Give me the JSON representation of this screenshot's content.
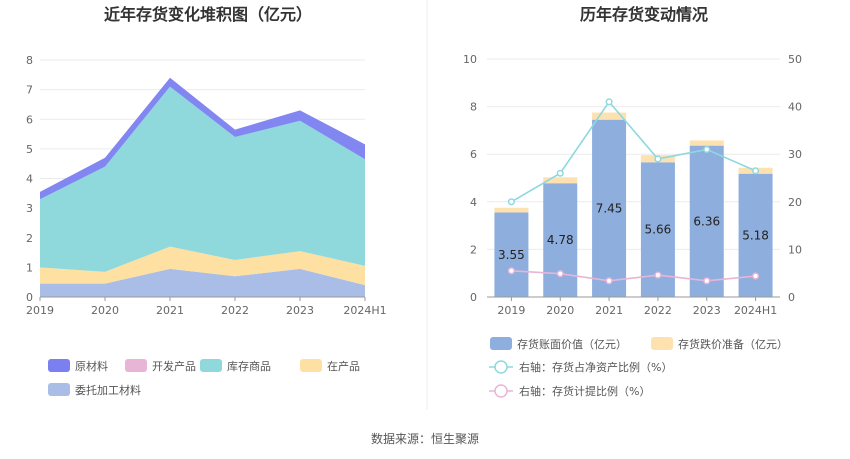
{
  "source": {
    "label": "数据来源：恒生聚源"
  },
  "colors": {
    "raw_material": "#7b7ff0",
    "dev_product": "#e8b5d6",
    "inventory_goods": "#8fd9dc",
    "wip": "#fde0a2",
    "consigned": "#a9bde6",
    "bar_book": "#8eaede",
    "bar_provision": "#fde2b0",
    "line_ratio": "#8ed8e0",
    "line_provision": "#e8b5d6"
  },
  "chart_data": [
    {
      "type": "area",
      "title": "近年存货变化堆积图（亿元）",
      "categories": [
        "2019",
        "2020",
        "2021",
        "2022",
        "2023",
        "2024H1"
      ],
      "ylim": [
        0,
        8
      ],
      "yticks": [
        0,
        1,
        2,
        3,
        4,
        5,
        6,
        7,
        8
      ],
      "stacked": true,
      "grid": true,
      "legend_position": "bottom",
      "series": [
        {
          "name": "委托加工材料",
          "key": "consigned",
          "values": [
            0.45,
            0.45,
            0.95,
            0.7,
            0.95,
            0.4
          ]
        },
        {
          "name": "在产品",
          "key": "wip",
          "values": [
            0.55,
            0.4,
            0.75,
            0.55,
            0.6,
            0.65
          ]
        },
        {
          "name": "库存商品",
          "key": "inventory_goods",
          "values": [
            2.3,
            3.55,
            5.4,
            4.15,
            4.4,
            3.6
          ]
        },
        {
          "name": "开发产品",
          "key": "dev_product",
          "values": [
            0,
            0,
            0,
            0,
            0,
            0
          ]
        },
        {
          "name": "原材料",
          "key": "raw_material",
          "values": [
            0.25,
            0.3,
            0.3,
            0.25,
            0.35,
            0.5
          ]
        }
      ],
      "legend_order": [
        "原材料",
        "开发产品",
        "库存商品",
        "在产品",
        "委托加工材料"
      ]
    },
    {
      "type": "bar",
      "title": "历年存货变动情况",
      "categories": [
        "2019",
        "2020",
        "2021",
        "2022",
        "2023",
        "2024H1"
      ],
      "ylim": [
        0,
        10
      ],
      "yticks": [
        0,
        2,
        4,
        6,
        8,
        10
      ],
      "y2lim": [
        0,
        50
      ],
      "y2ticks": [
        0,
        10,
        20,
        30,
        40,
        50
      ],
      "grid": true,
      "legend_position": "bottom",
      "series": [
        {
          "name": "存货账面价值（亿元）",
          "key": "bar_book",
          "axis": "left",
          "kind": "bar",
          "values": [
            3.55,
            4.78,
            7.45,
            5.66,
            6.36,
            5.18
          ],
          "labels": [
            "3.55",
            "4.78",
            "7.45",
            "5.66",
            "6.36",
            "5.18"
          ]
        },
        {
          "name": "存货跌价准备（亿元）",
          "key": "bar_provision",
          "axis": "left",
          "kind": "bar",
          "values": [
            0.2,
            0.25,
            0.3,
            0.3,
            0.22,
            0.25
          ]
        },
        {
          "name": "右轴：存货占净资产比例（%）",
          "key": "line_ratio",
          "axis": "right",
          "kind": "line",
          "values": [
            20,
            26,
            41,
            29,
            31,
            26.5
          ]
        },
        {
          "name": "右轴：存货计提比例（%）",
          "key": "line_provision",
          "axis": "right",
          "kind": "line",
          "values": [
            5.5,
            4.9,
            3.4,
            4.6,
            3.4,
            4.4
          ]
        }
      ]
    }
  ]
}
